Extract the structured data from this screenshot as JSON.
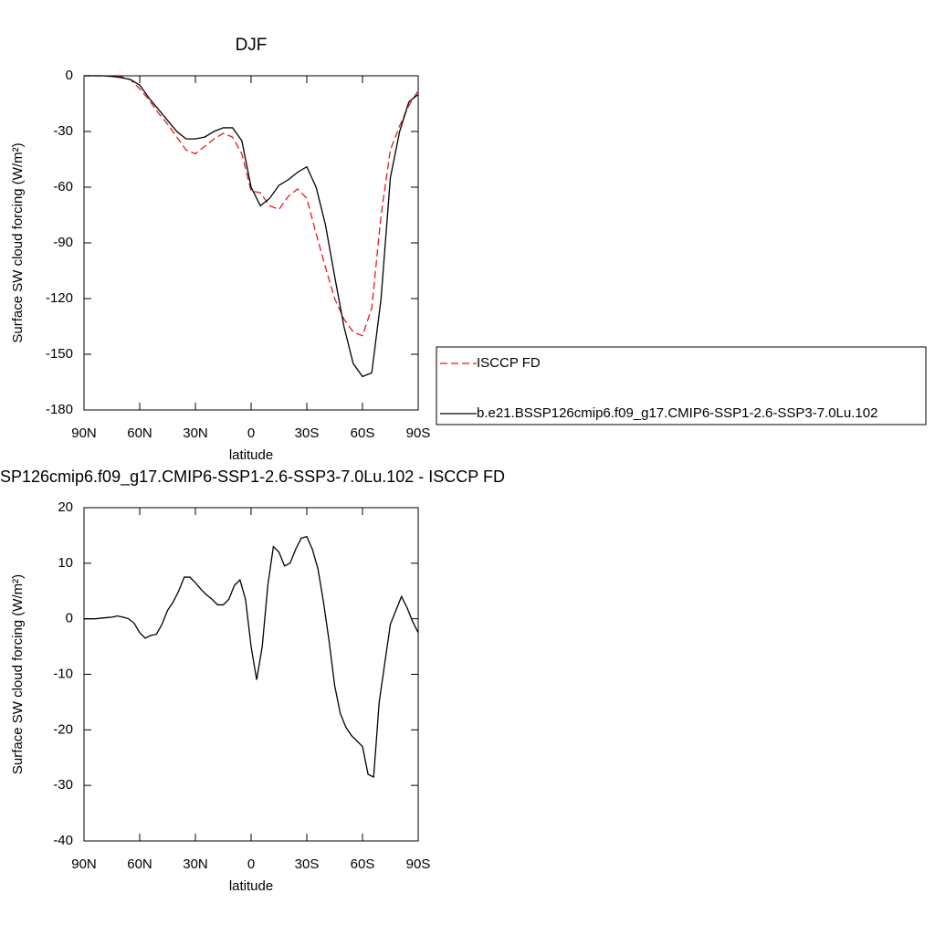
{
  "chart_data": [
    {
      "type": "line",
      "title": "DJF",
      "xlabel": "latitude",
      "ylabel": "Surface SW cloud forcing (W/m²)",
      "x": [
        90,
        85,
        80,
        75,
        70,
        65,
        60,
        55,
        50,
        45,
        40,
        35,
        30,
        25,
        20,
        15,
        10,
        5,
        0,
        -5,
        -10,
        -15,
        -20,
        -25,
        -30,
        -35,
        -40,
        -45,
        -50,
        -55,
        -60,
        -65,
        -70,
        -75,
        -80,
        -85,
        -90
      ],
      "series": [
        {
          "name": "ISCCP FD",
          "color": "#e41a1c",
          "dash": true,
          "values": [
            0,
            0,
            0,
            -0.3,
            -0.5,
            -2,
            -7,
            -13,
            -20,
            -26,
            -33,
            -40,
            -42,
            -38,
            -34,
            -31,
            -33,
            -42,
            -62,
            -63,
            -70,
            -72,
            -65,
            -61,
            -66,
            -85,
            -103,
            -120,
            -131,
            -138,
            -140,
            -125,
            -75,
            -40,
            -27,
            -16,
            -8
          ]
        },
        {
          "name": "b.e21.BSSP126cmip6.f09_g17.CMIP6-SSP1-2.6-SSP3-7.0Lu.102",
          "color": "#000000",
          "dash": false,
          "values": [
            0,
            0,
            0,
            -0.3,
            -1,
            -2,
            -5,
            -12,
            -18,
            -24,
            -30,
            -34,
            -34,
            -33,
            -30,
            -28,
            -28,
            -35,
            -60,
            -70,
            -66,
            -59,
            -56,
            -52,
            -49,
            -60,
            -80,
            -108,
            -135,
            -155,
            -162,
            -160,
            -120,
            -55,
            -30,
            -14,
            -10
          ]
        }
      ],
      "xlim": [
        90,
        -90
      ],
      "xticks": [
        {
          "value": 90,
          "label": "90N"
        },
        {
          "value": 60,
          "label": "60N"
        },
        {
          "value": 30,
          "label": "30N"
        },
        0,
        {
          "value": -30,
          "label": "30S"
        },
        {
          "value": -60,
          "label": "60S"
        },
        {
          "value": -90,
          "label": "90S"
        }
      ],
      "ylim": [
        -180,
        0
      ],
      "yticks": [
        -180,
        -150,
        -120,
        -90,
        -60,
        -30,
        0
      ],
      "legend": "right"
    },
    {
      "type": "line",
      "title": "SP126cmip6.f09_g17.CMIP6-SSP1-2.6-SSP3-7.0Lu.102 - ISCCP FD",
      "xlabel": "latitude",
      "ylabel": "Surface SW cloud forcing (W/m²)",
      "x": [
        90,
        87,
        84,
        81,
        78,
        75,
        72,
        69,
        66,
        63,
        60,
        57,
        54,
        51,
        48,
        45,
        42,
        39,
        36,
        33,
        30,
        27,
        24,
        21,
        18,
        15,
        12,
        9,
        6,
        3,
        0,
        -3,
        -6,
        -9,
        -12,
        -15,
        -18,
        -21,
        -24,
        -27,
        -30,
        -33,
        -36,
        -39,
        -42,
        -45,
        -48,
        -51,
        -54,
        -57,
        -60,
        -63,
        -66,
        -69,
        -72,
        -75,
        -78,
        -81,
        -84,
        -87,
        -90
      ],
      "series": [
        {
          "color": "#000000",
          "dash": false,
          "values": [
            0,
            0,
            0,
            0.1,
            0.2,
            0.3,
            0.5,
            0.3,
            0,
            -0.8,
            -2.5,
            -3.5,
            -3,
            -2.8,
            -1,
            1.5,
            3,
            5,
            7.5,
            7.5,
            6.5,
            5.3,
            4.3,
            3.5,
            2.5,
            2.5,
            3.5,
            6,
            7,
            3.5,
            -5,
            -11,
            -5,
            6,
            13,
            12,
            9.5,
            10,
            12.5,
            14.5,
            14.8,
            12.5,
            9,
            3,
            -4,
            -12,
            -17,
            -19.5,
            -21,
            -22,
            -23,
            -28,
            -28.5,
            -15,
            -8,
            -1,
            1.5,
            4,
            2,
            -0.5,
            -2.5
          ]
        }
      ],
      "xlim": [
        90,
        -90
      ],
      "xticks": [
        {
          "value": 90,
          "label": "90N"
        },
        {
          "value": 60,
          "label": "60N"
        },
        {
          "value": 30,
          "label": "30N"
        },
        0,
        {
          "value": -30,
          "label": "30S"
        },
        {
          "value": -60,
          "label": "60S"
        },
        {
          "value": -90,
          "label": "90S"
        }
      ],
      "ylim": [
        -40,
        20
      ],
      "yticks": [
        -40,
        -30,
        -20,
        -10,
        0,
        10,
        20
      ]
    }
  ]
}
